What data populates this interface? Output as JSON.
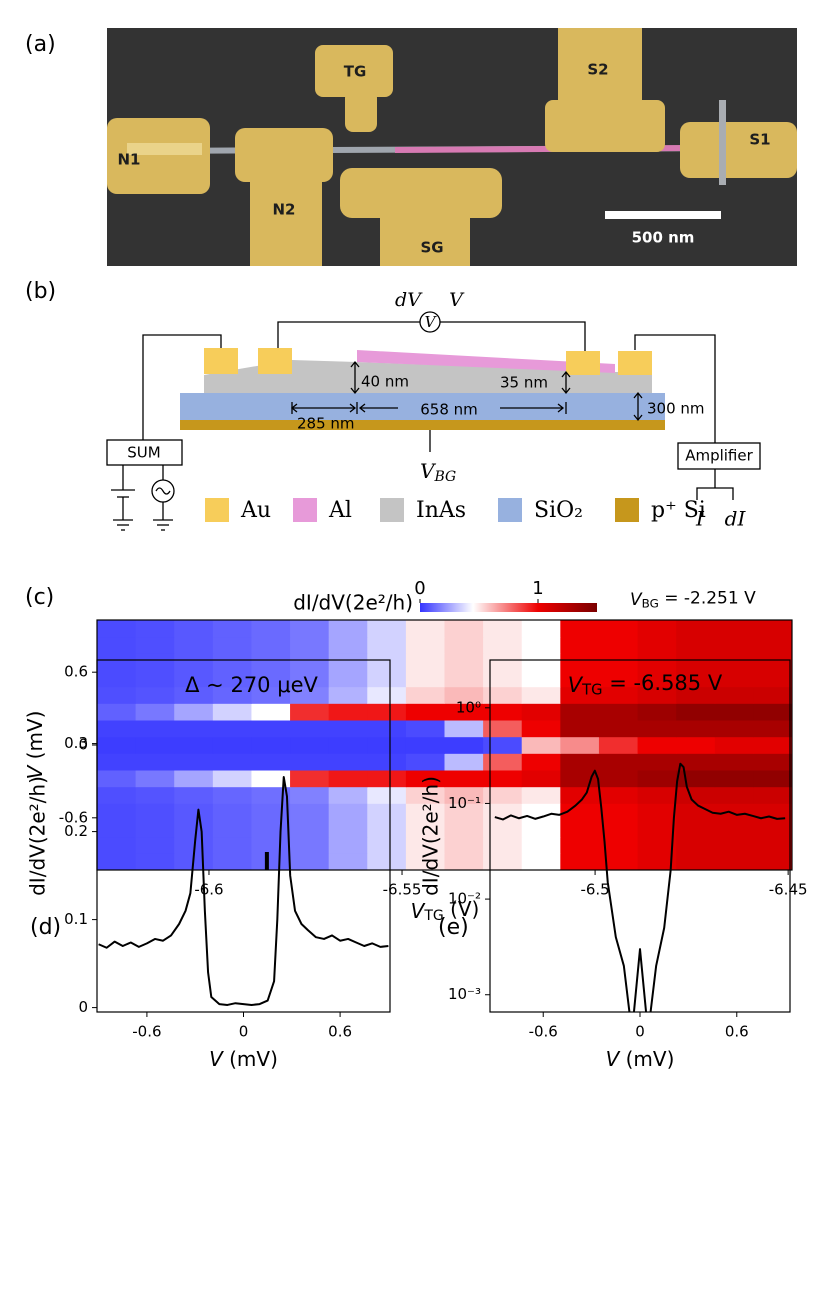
{
  "panel_labels": [
    "(a)",
    "(b)",
    "(c)",
    "(d)",
    "(e)"
  ],
  "sem_image": {
    "labels": [
      "TG",
      "S2",
      "N1",
      "N2",
      "SG",
      "S1"
    ],
    "scale_bar": "500 nm"
  },
  "schematic": {
    "dv": "dV",
    "v": "V",
    "meter": "V",
    "dim_40": "40 nm",
    "dim_35": "35 nm",
    "dim_658": "658 nm",
    "dim_285": "285 nm",
    "dim_300": "300 nm",
    "sum": "SUM",
    "vbg": {
      "main": "V",
      "sub": "BG"
    },
    "amplifier": "Amplifier",
    "i": "I",
    "di": "dI",
    "legend": [
      {
        "name": "Au",
        "color": "#f7cd5a"
      },
      {
        "name": "Al",
        "color": "#e79ad9"
      },
      {
        "name": "InAs",
        "color": "#c4c4c4"
      },
      {
        "name": "SiO₂",
        "color": "#97b1df"
      },
      {
        "name": "p⁺ Si",
        "color": "#c6971c"
      }
    ]
  },
  "chart_data": [
    {
      "type": "heatmap",
      "colorbar_label": "dI/dV(2e²/h)",
      "annotation": {
        "main": "V",
        "sub": "BG",
        "rest": " = -2.251 V"
      },
      "xlabel": {
        "main": "V",
        "sub": "TG",
        "unit": " (V)"
      },
      "ylabel": {
        "main": "V",
        "unit": " (mV)"
      },
      "xlim": [
        -6.629,
        -6.449
      ],
      "ylim": [
        -1.03,
        1.03
      ],
      "xticks": [
        -6.6,
        -6.55,
        -6.5,
        -6.45
      ],
      "yticks": [
        -0.6,
        0,
        0.6
      ],
      "clim": [
        0,
        1.5
      ],
      "cticks": [
        0,
        1
      ],
      "colormap": {
        "stops": [
          0,
          0.45,
          1,
          1.5
        ],
        "colors": [
          "#3434ff",
          "#ffffff",
          "#ee0000",
          "#7a0000"
        ]
      },
      "cut_x": -6.585,
      "x": [
        -6.624,
        -6.614,
        -6.604,
        -6.594,
        -6.584,
        -6.574,
        -6.564,
        -6.554,
        -6.544,
        -6.534,
        -6.524,
        -6.514,
        -6.504,
        -6.494,
        -6.484,
        -6.474,
        -6.464,
        -6.454
      ],
      "y": [
        -0.961,
        -0.824,
        -0.687,
        -0.549,
        -0.412,
        -0.275,
        -0.137,
        0,
        0.137,
        0.275,
        0.412,
        0.549,
        0.687,
        0.824,
        0.961
      ],
      "z": [
        [
          0.05,
          0.06,
          0.08,
          0.1,
          0.12,
          0.15,
          0.25,
          0.35,
          0.5,
          0.55,
          0.5,
          0.45,
          1.0,
          1.0,
          1.05,
          1.1,
          1.1,
          1.1
        ],
        [
          0.05,
          0.06,
          0.08,
          0.1,
          0.12,
          0.15,
          0.25,
          0.35,
          0.5,
          0.55,
          0.5,
          0.45,
          1.0,
          1.0,
          1.05,
          1.1,
          1.1,
          1.1
        ],
        [
          0.05,
          0.06,
          0.08,
          0.1,
          0.12,
          0.15,
          0.25,
          0.35,
          0.5,
          0.55,
          0.5,
          0.45,
          1.0,
          1.0,
          1.05,
          1.1,
          1.1,
          1.1
        ],
        [
          0.05,
          0.06,
          0.08,
          0.1,
          0.12,
          0.15,
          0.25,
          0.35,
          0.5,
          0.55,
          0.5,
          0.45,
          1.0,
          1.0,
          1.05,
          1.1,
          1.1,
          1.1
        ],
        [
          0.06,
          0.07,
          0.09,
          0.11,
          0.13,
          0.17,
          0.28,
          0.4,
          0.55,
          0.6,
          0.55,
          0.5,
          1.05,
          1.05,
          1.1,
          1.15,
          1.15,
          1.15
        ],
        [
          0.1,
          0.15,
          0.25,
          0.35,
          0.45,
          0.9,
          0.95,
          0.95,
          1.0,
          1.0,
          1.0,
          1.05,
          1.3,
          1.3,
          1.35,
          1.4,
          1.4,
          1.4
        ],
        [
          0.03,
          0.03,
          0.03,
          0.03,
          0.03,
          0.03,
          0.03,
          0.03,
          0.05,
          0.3,
          0.8,
          1.0,
          1.3,
          1.3,
          1.3,
          1.3,
          1.3,
          1.3
        ],
        [
          0.02,
          0.02,
          0.02,
          0.02,
          0.02,
          0.02,
          0.02,
          0.02,
          0.02,
          0.02,
          0.05,
          0.6,
          0.7,
          0.9,
          1.0,
          1.0,
          1.05,
          1.05
        ],
        [
          0.03,
          0.03,
          0.03,
          0.03,
          0.03,
          0.03,
          0.03,
          0.03,
          0.05,
          0.3,
          0.8,
          1.0,
          1.3,
          1.3,
          1.3,
          1.3,
          1.3,
          1.3
        ],
        [
          0.1,
          0.15,
          0.25,
          0.35,
          0.45,
          0.9,
          0.95,
          0.95,
          1.0,
          1.0,
          1.0,
          1.05,
          1.3,
          1.3,
          1.35,
          1.4,
          1.4,
          1.4
        ],
        [
          0.06,
          0.07,
          0.09,
          0.11,
          0.13,
          0.17,
          0.28,
          0.4,
          0.55,
          0.6,
          0.55,
          0.5,
          1.05,
          1.05,
          1.1,
          1.15,
          1.15,
          1.15
        ],
        [
          0.05,
          0.06,
          0.08,
          0.1,
          0.12,
          0.15,
          0.25,
          0.35,
          0.5,
          0.55,
          0.5,
          0.45,
          1.0,
          1.0,
          1.05,
          1.1,
          1.1,
          1.1
        ],
        [
          0.05,
          0.06,
          0.08,
          0.1,
          0.12,
          0.15,
          0.25,
          0.35,
          0.5,
          0.55,
          0.5,
          0.45,
          1.0,
          1.0,
          1.05,
          1.1,
          1.1,
          1.1
        ],
        [
          0.05,
          0.06,
          0.08,
          0.1,
          0.12,
          0.15,
          0.25,
          0.35,
          0.5,
          0.55,
          0.5,
          0.45,
          1.0,
          1.0,
          1.05,
          1.1,
          1.1,
          1.1
        ],
        [
          0.05,
          0.06,
          0.08,
          0.1,
          0.12,
          0.15,
          0.25,
          0.35,
          0.5,
          0.55,
          0.5,
          0.45,
          1.0,
          1.0,
          1.05,
          1.1,
          1.1,
          1.1
        ]
      ]
    },
    {
      "type": "line",
      "title": "Δ ∼ 270 μeV",
      "xlabel": {
        "main": "V",
        "unit": " (mV)"
      },
      "ylabel": "dI/dV(2e²/h)",
      "xlim": [
        -0.91,
        0.91
      ],
      "ylim": [
        -0.005,
        0.395
      ],
      "xticks": [
        -0.6,
        0,
        0.6
      ],
      "yticks": [
        0,
        0.1,
        0.2,
        0.3
      ],
      "log_y": false,
      "x": [
        -0.9,
        -0.85,
        -0.8,
        -0.75,
        -0.7,
        -0.65,
        -0.6,
        -0.55,
        -0.5,
        -0.45,
        -0.4,
        -0.36,
        -0.33,
        -0.3,
        -0.28,
        -0.26,
        -0.24,
        -0.22,
        -0.2,
        -0.15,
        -0.1,
        -0.05,
        0,
        0.05,
        0.1,
        0.15,
        0.19,
        0.21,
        0.23,
        0.25,
        0.27,
        0.29,
        0.32,
        0.36,
        0.4,
        0.45,
        0.5,
        0.55,
        0.6,
        0.65,
        0.7,
        0.75,
        0.8,
        0.85,
        0.9
      ],
      "series": [
        {
          "color": "#000000",
          "values": [
            0.072,
            0.068,
            0.075,
            0.07,
            0.074,
            0.069,
            0.073,
            0.078,
            0.076,
            0.082,
            0.095,
            0.11,
            0.13,
            0.19,
            0.225,
            0.2,
            0.11,
            0.04,
            0.012,
            0.004,
            0.003,
            0.005,
            0.004,
            0.003,
            0.004,
            0.008,
            0.03,
            0.1,
            0.2,
            0.262,
            0.24,
            0.15,
            0.11,
            0.095,
            0.088,
            0.08,
            0.078,
            0.082,
            0.076,
            0.078,
            0.074,
            0.07,
            0.073,
            0.069,
            0.07
          ]
        }
      ]
    },
    {
      "type": "line",
      "title": {
        "main": "V",
        "sub": "TG",
        "rest": " = -6.585 V"
      },
      "xlabel": {
        "main": "V",
        "unit": " (mV)"
      },
      "ylabel": "dI/dV(2e²/h)",
      "xlim": [
        -0.93,
        0.93
      ],
      "ylim": [
        0.00066,
        3.16
      ],
      "xticks": [
        -0.6,
        0,
        0.6
      ],
      "yticks": [
        {
          "value": 0.001,
          "label": "10⁻³"
        },
        {
          "value": 0.01,
          "label": "10⁻²"
        },
        {
          "value": 0.1,
          "label": "10⁻¹"
        },
        {
          "value": 1,
          "label": "10⁰"
        }
      ],
      "log_y": true,
      "x": [
        -0.9,
        -0.85,
        -0.8,
        -0.75,
        -0.7,
        -0.65,
        -0.6,
        -0.55,
        -0.5,
        -0.45,
        -0.4,
        -0.36,
        -0.33,
        -0.3,
        -0.28,
        -0.26,
        -0.24,
        -0.22,
        -0.2,
        -0.15,
        -0.1,
        -0.05,
        0,
        0.05,
        0.1,
        0.15,
        0.19,
        0.21,
        0.23,
        0.25,
        0.27,
        0.29,
        0.32,
        0.36,
        0.4,
        0.45,
        0.5,
        0.55,
        0.6,
        0.65,
        0.7,
        0.75,
        0.8,
        0.85,
        0.9
      ],
      "series": [
        {
          "color": "#000000",
          "values": [
            0.072,
            0.068,
            0.075,
            0.07,
            0.074,
            0.069,
            0.073,
            0.078,
            0.076,
            0.082,
            0.095,
            0.11,
            0.13,
            0.19,
            0.22,
            0.18,
            0.09,
            0.04,
            0.015,
            0.004,
            0.002,
            0.0004,
            0.003,
            0.0004,
            0.002,
            0.005,
            0.02,
            0.07,
            0.17,
            0.26,
            0.24,
            0.15,
            0.11,
            0.095,
            0.088,
            0.08,
            0.078,
            0.082,
            0.076,
            0.078,
            0.074,
            0.07,
            0.073,
            0.069,
            0.07
          ]
        }
      ]
    }
  ]
}
